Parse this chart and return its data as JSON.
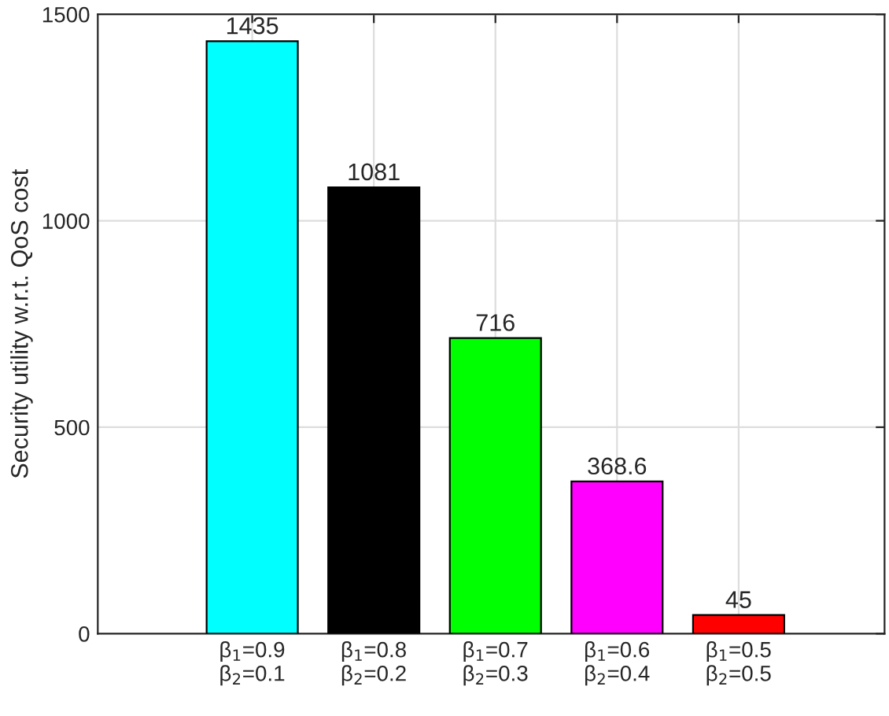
{
  "chart_data": {
    "type": "bar",
    "ylabel": "Security utility w.r.t. QoS cost",
    "categories": [
      "β$_{1}$=0.9\nβ$_{2}$=0.1",
      "β$_{1}$=0.8\nβ$_{2}$=0.2",
      "β$_{1}$=0.7\nβ$_{2}$=0.3",
      "β$_{1}$=0.6\nβ$_{2}$=0.4",
      "β$_{1}$=0.5\nβ$_{2}$=0.5"
    ],
    "values": [
      1435,
      1081,
      716,
      368.6,
      45
    ],
    "colors": [
      "#00ffff",
      "#000000",
      "#00ff00",
      "#ff00ff",
      "#ff0000"
    ],
    "ylim": [
      0,
      1500
    ],
    "yticks": [
      0,
      500,
      1000,
      1500
    ],
    "grid": true,
    "data_labels": true
  }
}
